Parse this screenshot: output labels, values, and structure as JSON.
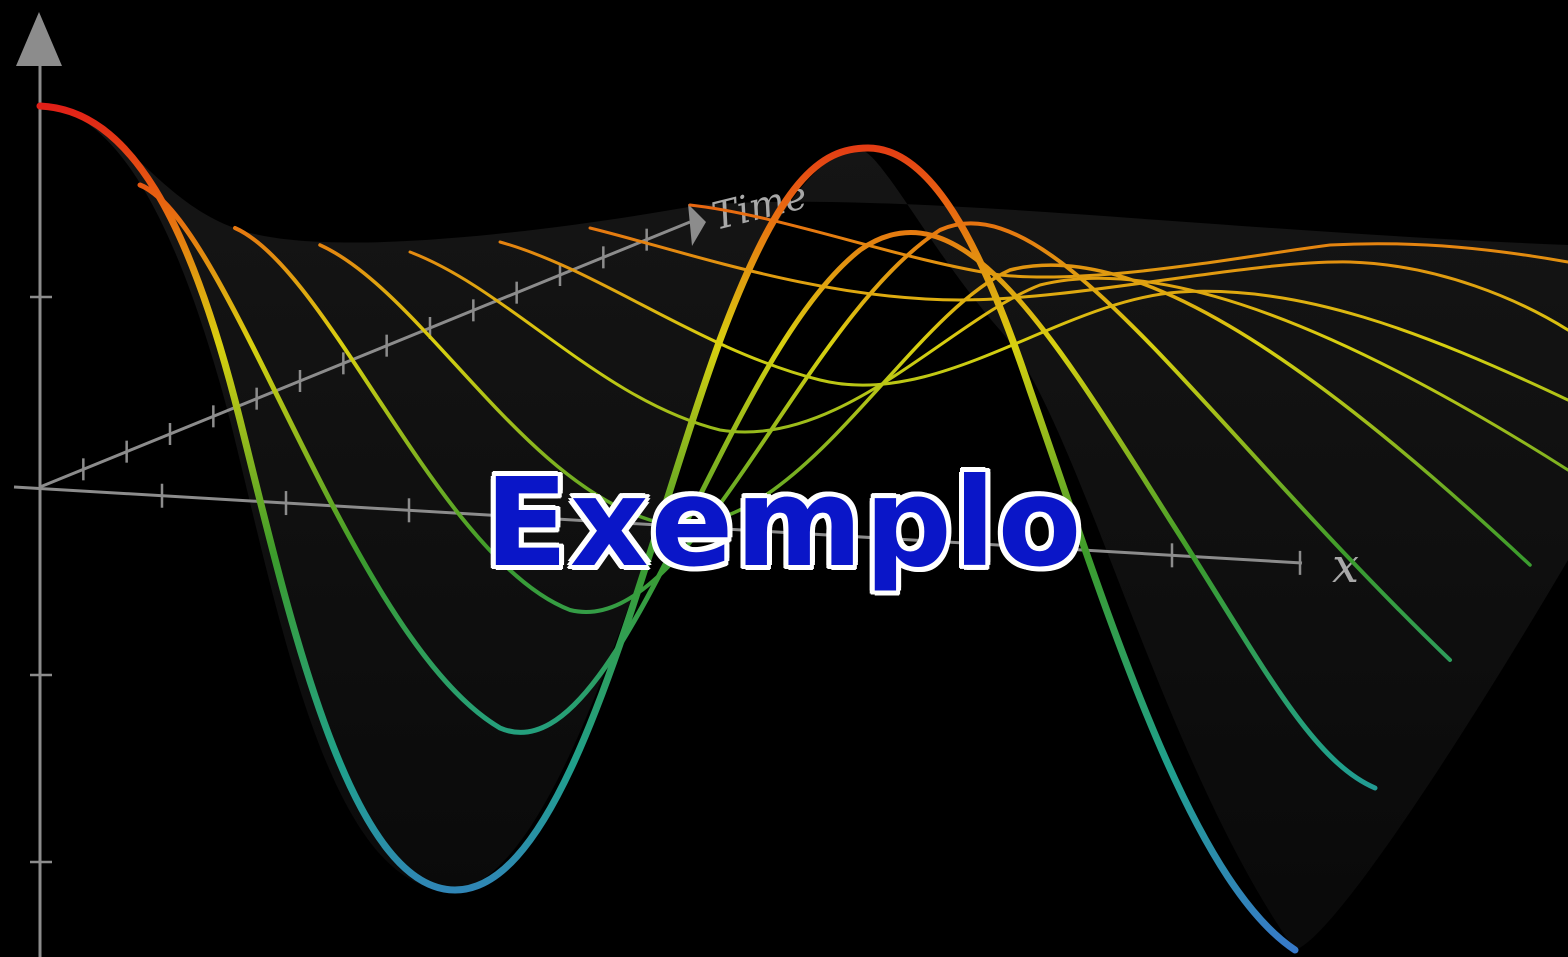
{
  "figure": {
    "time_axis_label": "Time",
    "x_axis_label": "x",
    "overlay_text": "Exemplo"
  },
  "colors": {
    "background": "#000000",
    "axis": "#8c8c8c",
    "overlay_text": "#0a16c8",
    "overlay_outline": "#ffffff",
    "wave_gradient": [
      "#e01818",
      "#e85a10",
      "#d8c810",
      "#3a9a30",
      "#20a0a0",
      "#3a78c8"
    ]
  }
}
